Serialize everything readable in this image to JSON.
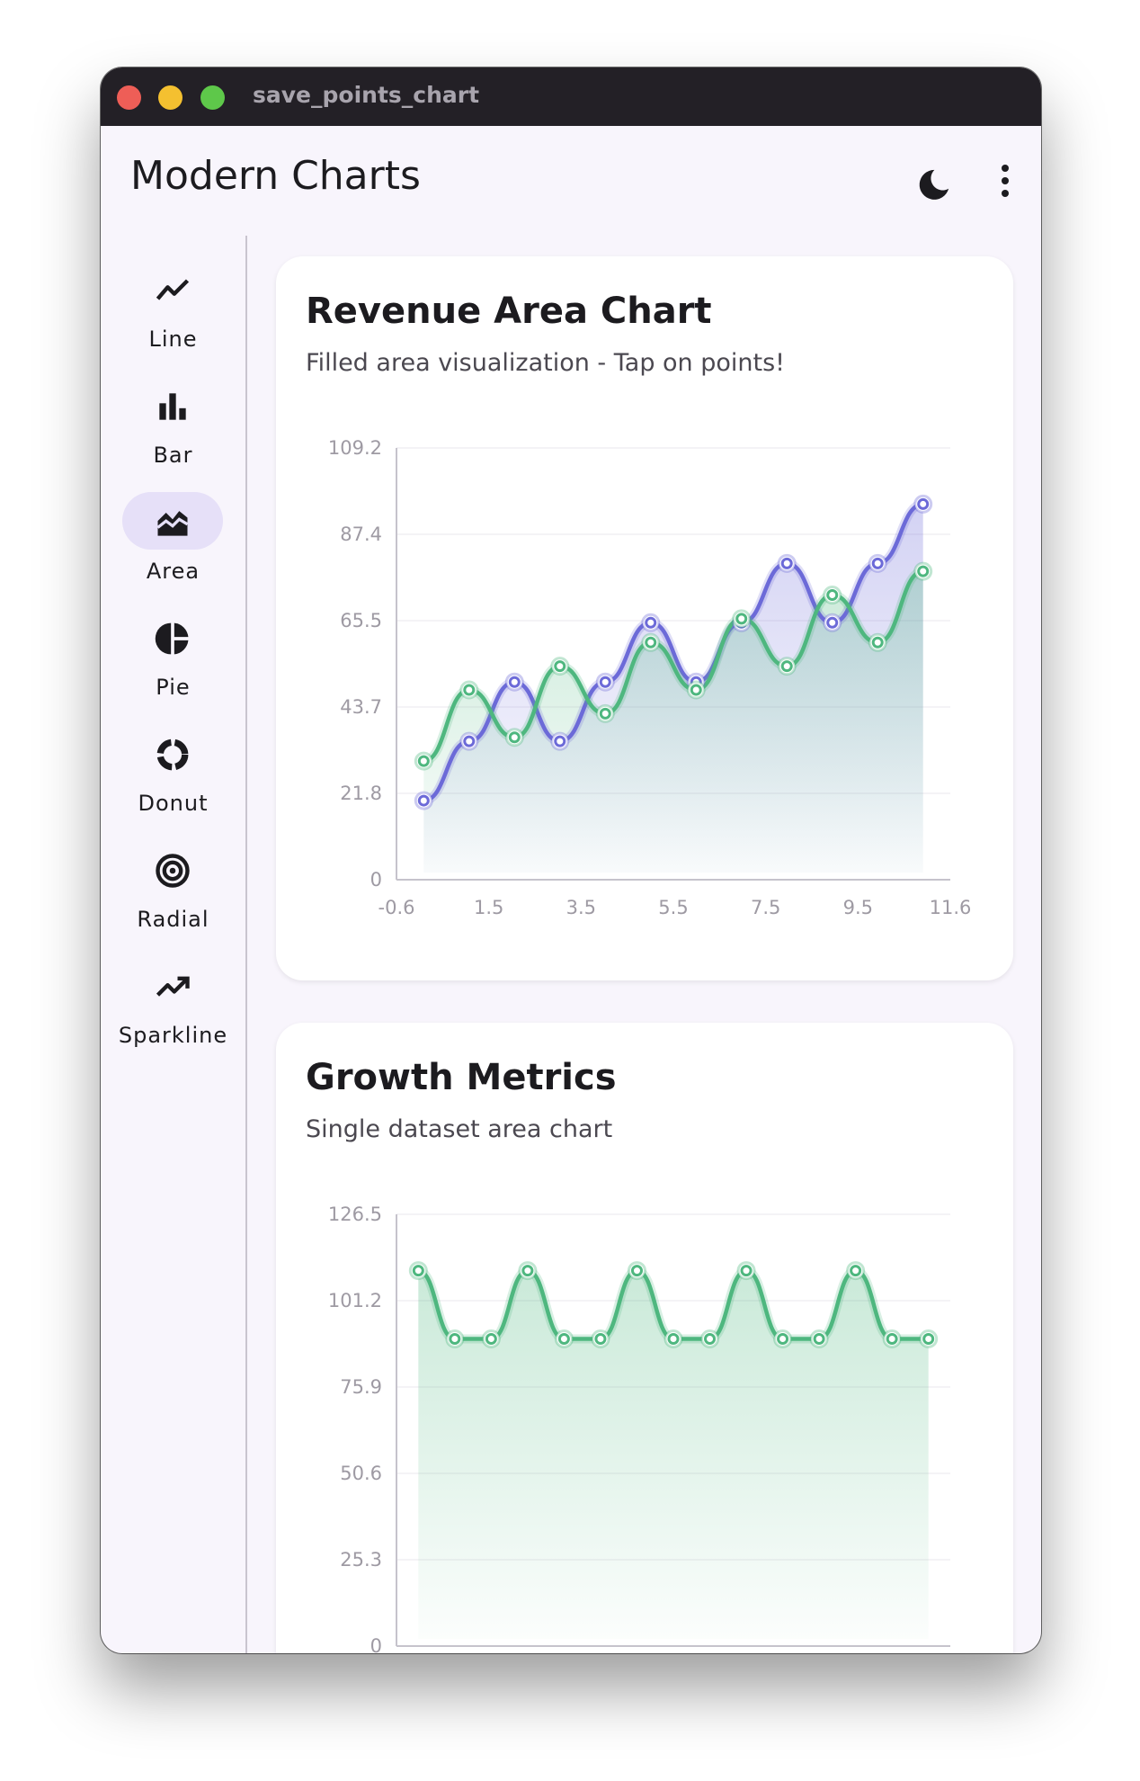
{
  "window": {
    "title": "save_points_chart"
  },
  "appbar": {
    "title": "Modern Charts",
    "theme_icon": "moon-icon",
    "menu_icon": "more-vert-icon"
  },
  "nav": {
    "items": [
      {
        "label": "Line",
        "icon": "show-chart-icon",
        "active": false
      },
      {
        "label": "Bar",
        "icon": "bar-chart-icon",
        "active": false
      },
      {
        "label": "Area",
        "icon": "area-chart-icon",
        "active": true
      },
      {
        "label": "Pie",
        "icon": "pie-chart-icon",
        "active": false
      },
      {
        "label": "Donut",
        "icon": "donut-icon",
        "active": false
      },
      {
        "label": "Radial",
        "icon": "radial-icon",
        "active": false
      },
      {
        "label": "Sparkline",
        "icon": "trending-up-icon",
        "active": false
      }
    ]
  },
  "cards": [
    {
      "title": "Revenue Area Chart",
      "subtitle": "Filled area visualization - Tap on points!"
    },
    {
      "title": "Growth Metrics",
      "subtitle": "Single dataset area chart"
    }
  ],
  "colors": {
    "series_blue": "#6c6ad8",
    "series_green": "#4eb77f",
    "accent": "#e6e0f8"
  },
  "chart_data": [
    {
      "type": "area",
      "title": "Revenue Area Chart",
      "subtitle": "Filled area visualization - Tap on points!",
      "xlabel": "",
      "ylabel": "",
      "xlim": [
        -0.6,
        11.6
      ],
      "ylim": [
        0,
        109.2
      ],
      "x_ticks": [
        "-0.6",
        "1.5",
        "3.5",
        "5.5",
        "7.5",
        "9.5",
        "11.6"
      ],
      "y_ticks": [
        "0",
        "21.8",
        "43.7",
        "65.5",
        "87.4",
        "109.2"
      ],
      "x": [
        0,
        1,
        2,
        3,
        4,
        5,
        6,
        7,
        8,
        9,
        10,
        11
      ],
      "grid": true,
      "legend": "none",
      "series": [
        {
          "color": "#6c6ad8",
          "values": [
            20,
            35,
            50,
            35,
            50,
            65,
            50,
            65,
            80,
            65,
            80,
            95
          ]
        },
        {
          "color": "#4eb77f",
          "values": [
            30,
            48,
            36,
            54,
            42,
            60,
            48,
            66,
            54,
            72,
            60,
            78
          ]
        }
      ]
    },
    {
      "type": "area",
      "title": "Growth Metrics",
      "subtitle": "Single dataset area chart",
      "xlabel": "",
      "ylabel": "",
      "ylim": [
        0,
        126.5
      ],
      "y_ticks": [
        "0",
        "25.3",
        "50.6",
        "75.9",
        "101.2",
        "126.5"
      ],
      "x": [
        0,
        1,
        2,
        3,
        4,
        5,
        6,
        7,
        8,
        9,
        10,
        11,
        12,
        13,
        14
      ],
      "grid": true,
      "legend": "none",
      "series": [
        {
          "color": "#4eb77f",
          "values": [
            110,
            90,
            90,
            110,
            90,
            90,
            110,
            90,
            90,
            110,
            90,
            90,
            110,
            90,
            90
          ]
        }
      ]
    }
  ]
}
